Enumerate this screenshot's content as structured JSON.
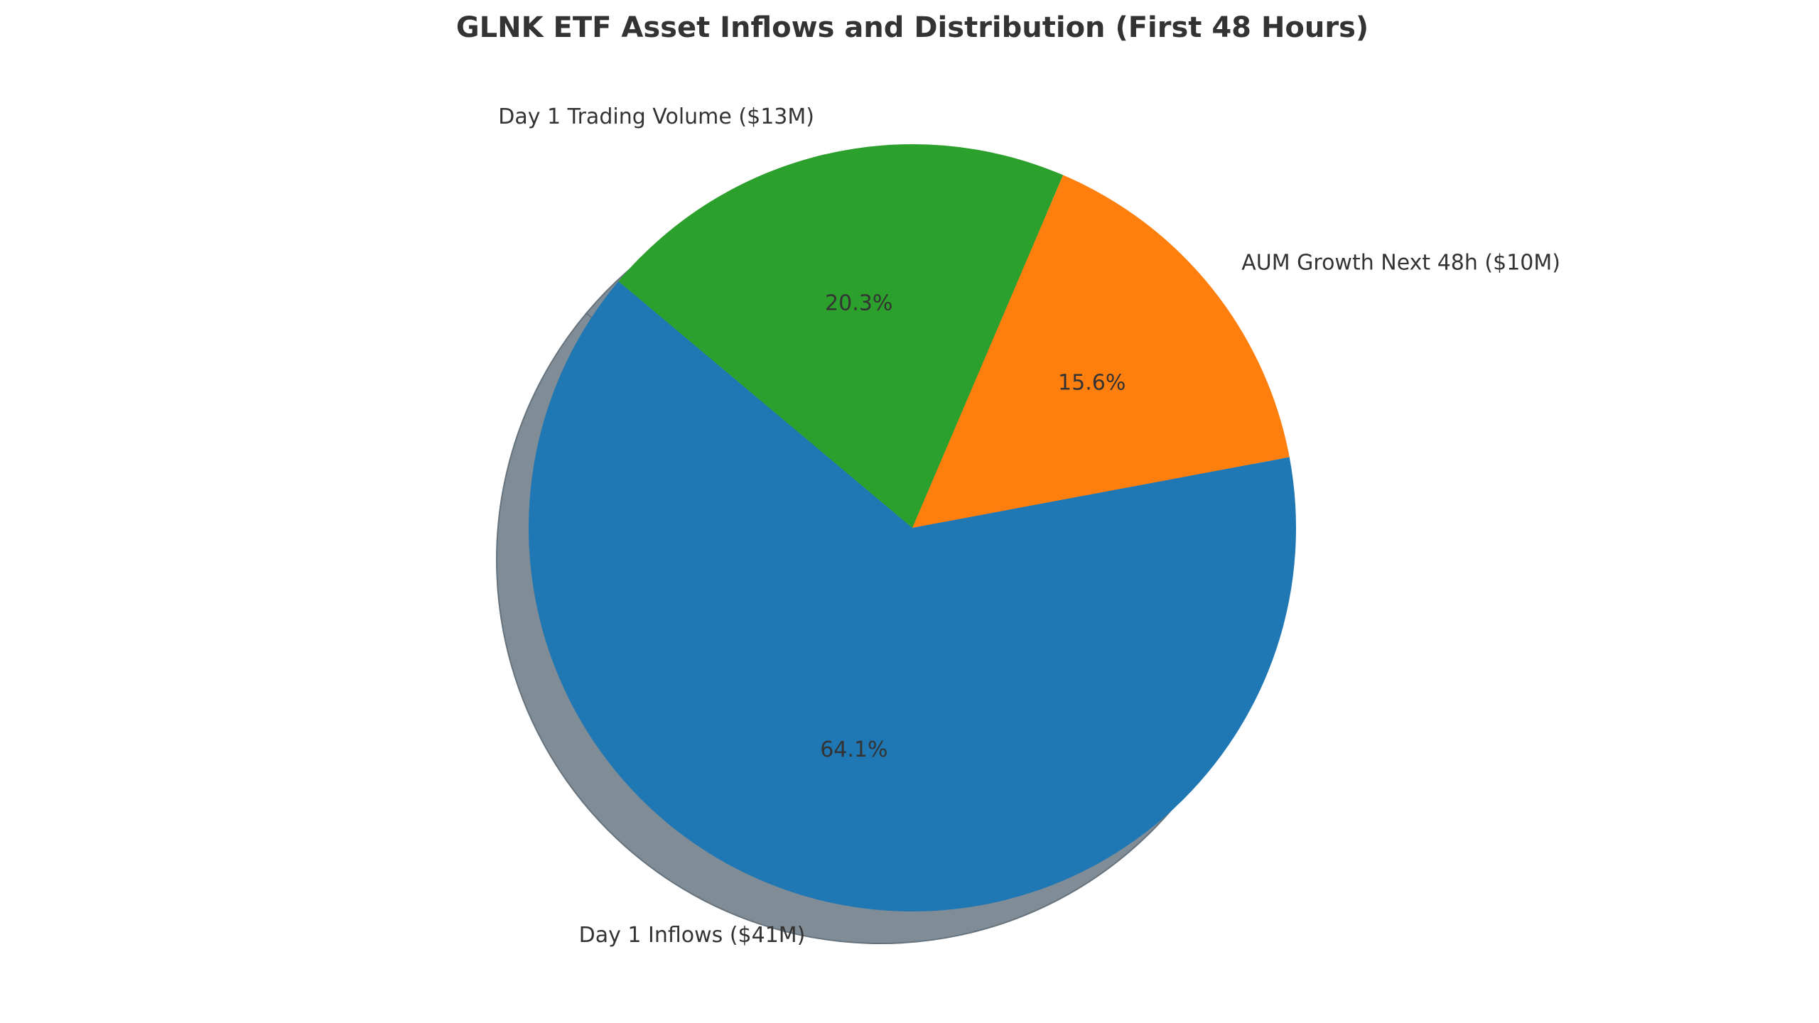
{
  "chart_data": {
    "type": "pie",
    "title": "GLNK ETF Asset Inflows and Distribution (First 48 Hours)",
    "slices": [
      {
        "label": "Day 1 Inflows ($41M)",
        "value": 41,
        "percent_label": "64.1%",
        "color": "#1f77b4"
      },
      {
        "label": "AUM Growth Next 48h ($10M)",
        "value": 10,
        "percent_label": "15.6%",
        "color": "#ff7f0e"
      },
      {
        "label": "Day 1 Trading Volume ($13M)",
        "value": 13,
        "percent_label": "20.3%",
        "color": "#2ca02c"
      }
    ],
    "start_angle_deg": 140,
    "direction": "counterclockwise",
    "shadow": true,
    "shadow_color": "#808d96",
    "legend": "none"
  }
}
